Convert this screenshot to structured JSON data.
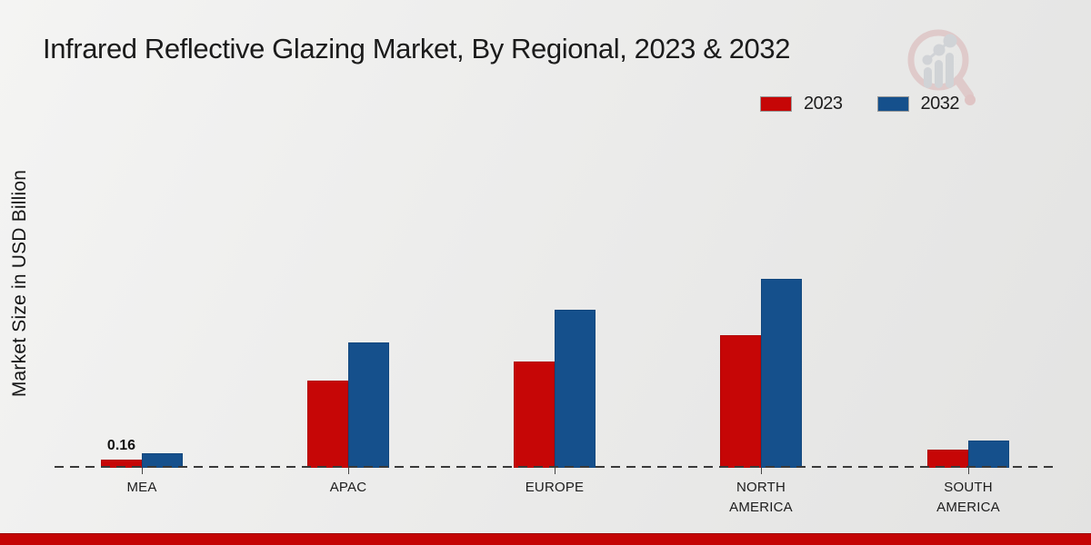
{
  "header": {
    "title": "Infrared Reflective Glazing Market, By Regional, 2023 & 2032"
  },
  "y_axis": {
    "label": "Market Size in USD Billion"
  },
  "legend": {
    "items": [
      {
        "label": "2023",
        "color": "#c60606"
      },
      {
        "label": "2032",
        "color": "#15508c"
      }
    ]
  },
  "chart_data": {
    "type": "bar",
    "title": "Infrared Reflective Glazing Market, By Regional, 2023 & 2032",
    "categories": [
      "MEA",
      "APAC",
      "EUROPE",
      "NORTH AMERICA",
      "SOUTH AMERICA"
    ],
    "series": [
      {
        "name": "2023",
        "color": "#c60606",
        "values": [
          0.16,
          1.63,
          1.98,
          2.47,
          0.34
        ]
      },
      {
        "name": "2032",
        "color": "#15508c",
        "values": [
          0.27,
          2.34,
          2.95,
          3.53,
          0.51
        ]
      }
    ],
    "data_labels": [
      {
        "category_index": 0,
        "series_index": 0,
        "text": "0.16"
      }
    ],
    "xlabel": "",
    "ylabel": "Market Size in USD Billion",
    "ylim": [
      0,
      4
    ],
    "grid": false,
    "baseline_style": "dashed",
    "legend_position": "top-right",
    "y_ticks_visible": false
  },
  "watermark": {
    "name": "market-research-magnifier-logo"
  },
  "footer": {
    "accent_color": "#c40404"
  }
}
